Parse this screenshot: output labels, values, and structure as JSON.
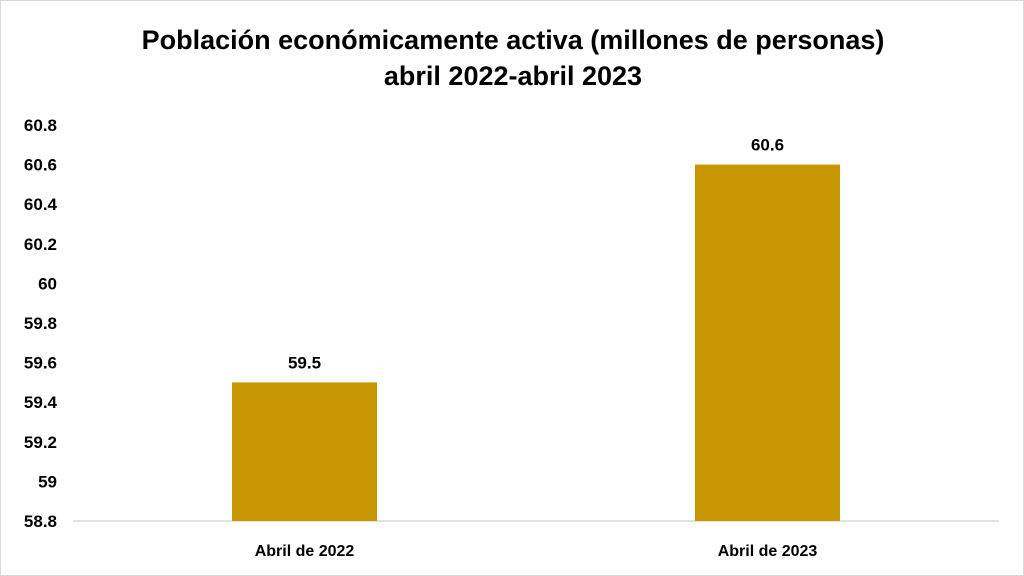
{
  "chart_data": {
    "type": "bar",
    "title": "Población económicamente activa (millones de personas)",
    "subtitle": "abril 2022-abril 2023",
    "categories": [
      "Abril de 2022",
      "Abril de 2023"
    ],
    "values": [
      59.5,
      60.6
    ],
    "data_labels": [
      "59.5",
      "60.6"
    ],
    "ylim": [
      58.8,
      60.8
    ],
    "y_ticks": [
      "58.8",
      "59",
      "59.2",
      "59.4",
      "59.6",
      "59.8",
      "60",
      "60.2",
      "60.4",
      "60.6",
      "60.8"
    ],
    "xlabel": "",
    "ylabel": "",
    "grid": false,
    "legend": "none",
    "bar_color": "#C89600",
    "axis_color": "#d9d9d9"
  }
}
